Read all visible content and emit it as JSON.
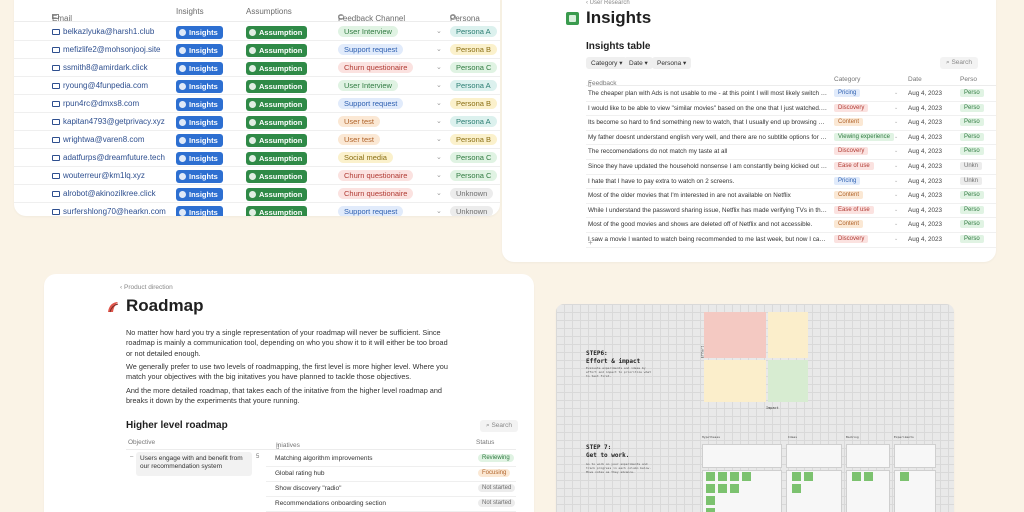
{
  "contacts_table": {
    "columns": {
      "email": "Email",
      "insights": "Insights",
      "assumptions": "Assumptions",
      "feedback_channel": "Feedback Channel",
      "persona": "Persona"
    },
    "insights_label": "Insights",
    "assumption_label": "Assumption",
    "rows": [
      {
        "email": "belkazlyuka@harsh1.club",
        "channel": "User Interview",
        "channel_color": "green",
        "persona": "Persona A",
        "persona_color": "teal"
      },
      {
        "email": "mefizlife2@mohsonjooj.site",
        "channel": "Support request",
        "channel_color": "blue",
        "persona": "Persona B",
        "persona_color": "yellow"
      },
      {
        "email": "ssmith8@amirdark.click",
        "channel": "Churn questionaire",
        "channel_color": "red",
        "persona": "Persona C",
        "persona_color": "green"
      },
      {
        "email": "ryoung@4funpedia.com",
        "channel": "User Interview",
        "channel_color": "green",
        "persona": "Persona A",
        "persona_color": "teal"
      },
      {
        "email": "rpun4rc@dmxs8.com",
        "channel": "Support request",
        "channel_color": "blue",
        "persona": "Persona B",
        "persona_color": "yellow"
      },
      {
        "email": "kapitan4793@getprivacy.xyz",
        "channel": "User test",
        "channel_color": "orange",
        "persona": "Persona A",
        "persona_color": "teal"
      },
      {
        "email": "wrightwa@varen8.com",
        "channel": "User test",
        "channel_color": "orange",
        "persona": "Persona B",
        "persona_color": "yellow"
      },
      {
        "email": "adatfurps@dreamfuture.tech",
        "channel": "Social media",
        "channel_color": "yellow",
        "persona": "Persona C",
        "persona_color": "green"
      },
      {
        "email": "wouterreur@km1lq.xyz",
        "channel": "Churn questionaire",
        "channel_color": "red",
        "persona": "Persona C",
        "persona_color": "green"
      },
      {
        "email": "alrobot@akinozilkree.click",
        "channel": "Churn questionaire",
        "channel_color": "red",
        "persona": "Unknown",
        "persona_color": "gray"
      },
      {
        "email": "surfershlong70@hearkn.com",
        "channel": "Support request",
        "channel_color": "blue",
        "persona": "Unknown",
        "persona_color": "gray"
      }
    ]
  },
  "insights_page": {
    "breadcrumb": "User Research",
    "title": "Insights",
    "table_title": "Insights table",
    "filters": [
      "Category",
      "Date",
      "Persona"
    ],
    "search_label": "Search",
    "columns": {
      "feedback": "Feedback",
      "category": "Category",
      "date": "Date",
      "persona": "Perso"
    },
    "rows": [
      {
        "feedback": "The cheaper plan with Ads is not usable to me - at this point I will most likely switch back to",
        "category": "Pricing",
        "cat_color": "blue",
        "date": "Aug 4, 2023",
        "persona": "Perso",
        "per_color": "green"
      },
      {
        "feedback": "I would like to be able to view \"similar movies\" based on the one that I just watched. Kind of",
        "category": "Discovery",
        "cat_color": "red",
        "date": "Aug 4, 2023",
        "persona": "Perso",
        "per_color": "green"
      },
      {
        "feedback": "Its become so hard to find something new to watch, that I usually end up browsing Netflix for",
        "category": "Content",
        "cat_color": "orange",
        "date": "Aug 4, 2023",
        "persona": "Perso",
        "per_color": "green"
      },
      {
        "feedback": "My father doesnt understand english very well, and there are no subtitle options for our lang",
        "category": "Viewing experience",
        "cat_color": "green",
        "date": "Aug 4, 2023",
        "persona": "Perso",
        "per_color": "green"
      },
      {
        "feedback": "The reccomendations do not match my taste at all",
        "category": "Discovery",
        "cat_color": "red",
        "date": "Aug 4, 2023",
        "persona": "Perso",
        "per_color": "green"
      },
      {
        "feedback": "Since they have updated the household nonsense I am constantly being kicked out of my acco",
        "category": "Ease of use",
        "cat_color": "red",
        "date": "Aug 4, 2023",
        "persona": "Unkn",
        "per_color": "gray"
      },
      {
        "feedback": "I hate that I have to pay extra to watch on 2 screens.",
        "category": "Pricing",
        "cat_color": "blue",
        "date": "Aug 4, 2023",
        "persona": "Unkn",
        "per_color": "gray"
      },
      {
        "feedback": "Most of the older movies that I'm interested in are not available on Netflix",
        "category": "Content",
        "cat_color": "orange",
        "date": "Aug 4, 2023",
        "persona": "Perso",
        "per_color": "green"
      },
      {
        "feedback": "While I understand the password sharing issue, Netflix has made verifying TVs in the \"House",
        "category": "Ease of use",
        "cat_color": "red",
        "date": "Aug 4, 2023",
        "persona": "Perso",
        "per_color": "green"
      },
      {
        "feedback": "Most of the good movies and shows are deleted off of Netflix and not accessible.",
        "category": "Content",
        "cat_color": "orange",
        "date": "Aug 4, 2023",
        "persona": "Perso",
        "per_color": "green"
      },
      {
        "feedback": "I saw a movie I wanted to watch being recommended to me last week, but now I can't find it",
        "category": "Discovery",
        "cat_color": "red",
        "date": "Aug 4, 2023",
        "persona": "Perso",
        "per_color": "green"
      }
    ]
  },
  "roadmap_page": {
    "breadcrumb": "Product direction",
    "title": "Roadmap",
    "paragraphs": [
      "No matter how hard you try a single representation of your roadmap will never be sufficient. Since roadmap is mainly a communication tool, depending on who you show it to it will either be too broad or not detailed enough.",
      "We generally prefer to use two levels of roadmapping, the first level is more higher level. Where you match your objectives with the big initatives you have planned to tackle those objectives.",
      "And the more detailed roadmap, that takes each of the initative from the higher level roadmap and breaks it down by the experiments that youre running."
    ],
    "subtitle": "Higher level roadmap",
    "search_label": "Search",
    "columns": {
      "objective": "Objective",
      "initiatives": "Iniatives",
      "status": "Status"
    },
    "objective": "Users engage with and benefit from our recommendation system",
    "objective_count": "5",
    "rows": [
      {
        "initiative": "Matching algorithm improvements",
        "status": "Reviewing",
        "status_color": "green"
      },
      {
        "initiative": "Global rating hub",
        "status": "Focusing",
        "status_color": "orange"
      },
      {
        "initiative": "Show discovery \"radio\"",
        "status": "Not started",
        "status_color": "gray"
      },
      {
        "initiative": "Recommendations onboarding section",
        "status": "Not started",
        "status_color": "gray"
      }
    ]
  },
  "whiteboard": {
    "step6_title": "STEP6:\nEffort & impact",
    "step6_text": "Evaluate experiments and ideas by effort and impact to prioritize what to test first.",
    "axis_effort": "Effort",
    "axis_impact": "Impact",
    "step7_title": "STEP 7:\nGet to work.",
    "step7_text": "Go to work on your experiments and track progress in each column below. Move notes as they advance.",
    "columns": [
      "Hypotheses",
      "Ideas",
      "Backlog",
      "Experiments"
    ]
  },
  "colors": {
    "insights_chip": "#2d6fd1",
    "assumption_chip": "#2f8a47",
    "page_bg": "#faf3e6"
  }
}
